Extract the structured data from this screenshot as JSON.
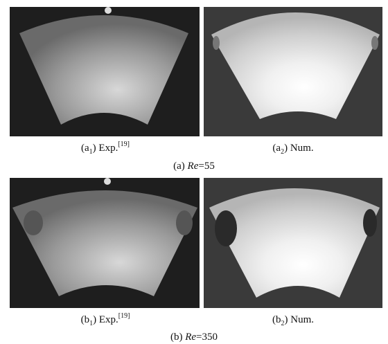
{
  "panels": [
    {
      "prefix": "(a",
      "sub": "1",
      "suffix": ") Exp.",
      "sup": "[19]"
    },
    {
      "prefix": "(a",
      "sub": "2",
      "suffix": ") Num."
    },
    {
      "prefix": "(b",
      "sub": "1",
      "suffix": ") Exp.",
      "sup": "[19]"
    },
    {
      "prefix": "(b",
      "sub": "2",
      "suffix": ") Num."
    }
  ],
  "captions": [
    {
      "label": "(a) ",
      "var": "Re",
      "value": "=55"
    },
    {
      "label": "(b) ",
      "var": "Re",
      "value": "=350"
    }
  ]
}
